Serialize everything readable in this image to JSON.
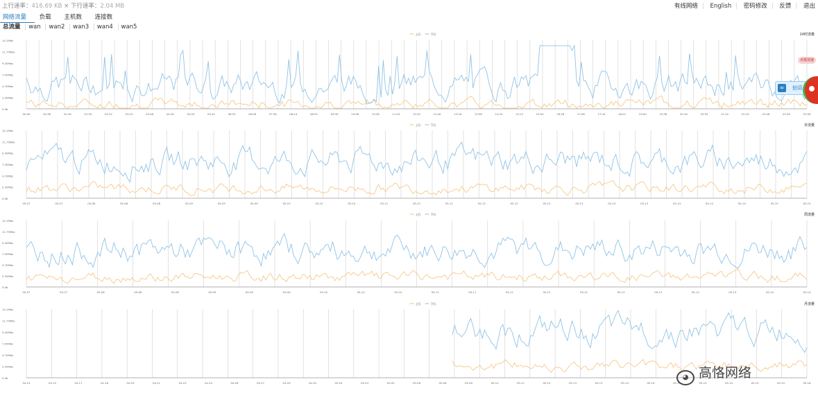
{
  "topbar": {
    "upload_label": "上行速率：",
    "upload_value": "416.69 KB",
    "download_label": "下行速率：",
    "download_value": "2.04 MB",
    "links": [
      "有线网络",
      "English",
      "密码修改",
      "反馈",
      "退出"
    ]
  },
  "tabs": [
    {
      "label": "网络流量",
      "active": true
    },
    {
      "label": "负载",
      "active": false
    },
    {
      "label": "主机数",
      "active": false
    },
    {
      "label": "连接数",
      "active": false
    }
  ],
  "subtabs": [
    "总流量",
    "wan",
    "wan2",
    "wan3",
    "wan4",
    "wan5"
  ],
  "legend": {
    "upload": "上行",
    "download": "下行"
  },
  "colors": {
    "upload": "#f5c27a",
    "download": "#8fc3e6",
    "grid": "#cfcfcf",
    "tab_active": "#2a7fc0"
  },
  "y_ticks": [
    "0.0b",
    "2.35Mbs",
    "4.70Mbs",
    "7.05Mbs",
    "9.40Mbs",
    "11.75Mbs",
    "14.1Mbs"
  ],
  "charts": [
    {
      "id": "day",
      "title": "24时流量",
      "x_labels": [
        "00:00",
        "00:38",
        "01:16",
        "01:54",
        "02:32",
        "03:10",
        "03:48",
        "04:26",
        "05:04",
        "05:42",
        "06:20",
        "06:58",
        "07:36",
        "08:14",
        "08:52",
        "09:30",
        "10:08",
        "10:46",
        "11:24",
        "12:02",
        "12:40",
        "13:18",
        "13:56",
        "14:34",
        "15:12",
        "15:50",
        "16:28",
        "17:06",
        "17:44",
        "18:22",
        "19:00",
        "19:38",
        "20:16",
        "20:54",
        "21:32",
        "22:10",
        "22:48",
        "23:26",
        "23:59"
      ]
    },
    {
      "id": "week",
      "title": "日流量",
      "x_labels": [
        "05-07",
        "05-07",
        "05-08",
        "05-08",
        "05-08",
        "05-09",
        "05-09",
        "05-09",
        "05-10",
        "05-10",
        "05-10",
        "05-11",
        "05-11",
        "05-11",
        "05-12",
        "05-12",
        "05-12",
        "05-13",
        "05-13",
        "05-13",
        "05-14",
        "05-14",
        "05-14",
        "05-15",
        "05-15"
      ]
    },
    {
      "id": "month",
      "title": "周流量",
      "x_labels": [
        "05-07",
        "05-07",
        "05-08",
        "05-08",
        "05-08",
        "05-09",
        "05-09",
        "05-09",
        "05-10",
        "05-10",
        "05-10",
        "05-11",
        "05-11",
        "05-11",
        "05-12",
        "05-12",
        "05-12",
        "05-13",
        "05-13",
        "05-13",
        "05-14",
        "05-14"
      ]
    },
    {
      "id": "year",
      "title": "月流量",
      "x_labels": [
        "04-14",
        "04-15",
        "04-17",
        "04-18",
        "04-20",
        "04-21",
        "04-23",
        "04-24",
        "04-26",
        "04-27",
        "04-29",
        "04-30",
        "05-02",
        "05-03",
        "05-05",
        "05-06",
        "05-08",
        "05-09",
        "05-10",
        "05-11",
        "05-12",
        "05-13",
        "05-13",
        "05-14",
        "05-14",
        "05-15",
        "05-15",
        "05-15",
        "05-15",
        "05-15",
        "05-16"
      ]
    }
  ],
  "widgets": {
    "bubble_text": "点我加速",
    "translate_label": "划词",
    "watermark": "高恪网络"
  }
}
